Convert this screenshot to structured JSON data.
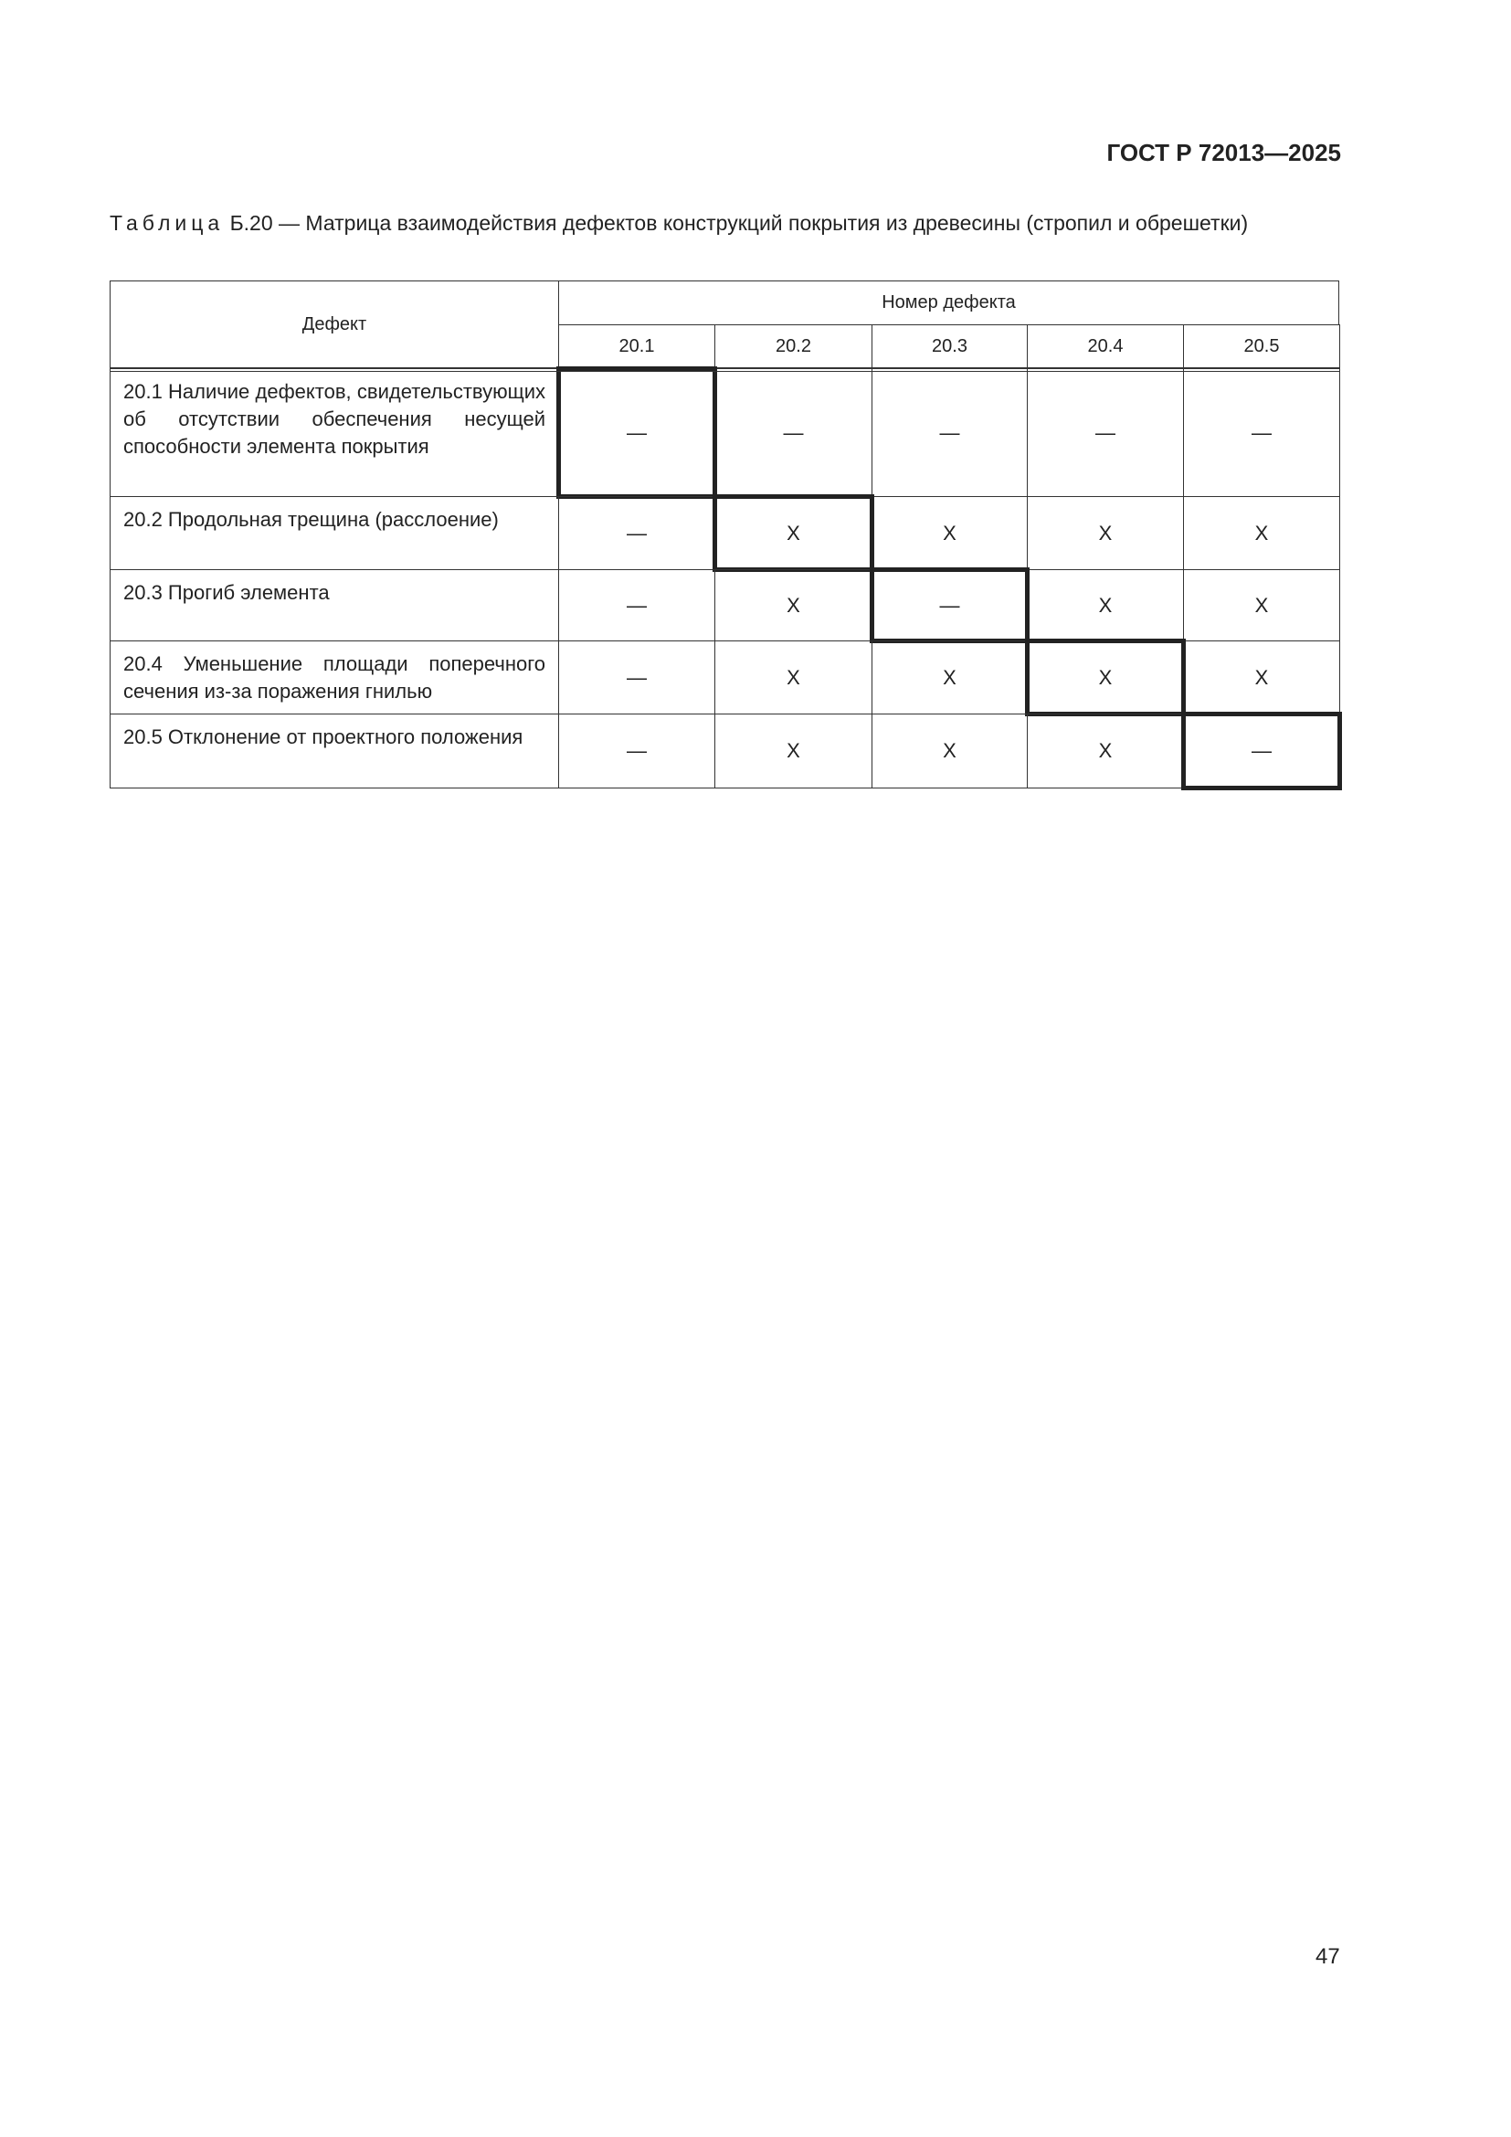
{
  "header": {
    "standard": "ГОСТ Р 72013—2025"
  },
  "caption": {
    "prefix": "Таблица",
    "text": " Б.20 — Матрица взаимодействия дефектов конструкций покрытия из древесины (стропил и обрешетки)"
  },
  "table": {
    "col_header": "Дефект",
    "group_header": "Номер дефекта",
    "columns": [
      "20.1",
      "20.2",
      "20.3",
      "20.4",
      "20.5"
    ],
    "rows": [
      {
        "label": "20.1 Наличие дефектов, свидетельствующих об отсутствии обеспечения несущей способности элемента покрытия",
        "cells": [
          "—",
          "—",
          "—",
          "—",
          "—"
        ]
      },
      {
        "label": "20.2 Продольная трещина (расслоение)",
        "cells": [
          "—",
          "X",
          "X",
          "X",
          "X"
        ]
      },
      {
        "label": "20.3 Прогиб элемента",
        "cells": [
          "—",
          "X",
          "—",
          "X",
          "X"
        ]
      },
      {
        "label": "20.4 Уменьшение площади поперечного сечения из-за поражения гнилью",
        "cells": [
          "—",
          "X",
          "X",
          "X",
          "X"
        ]
      },
      {
        "label": "20.5 Отклонение от проектного положения",
        "cells": [
          "—",
          "X",
          "X",
          "X",
          "—"
        ]
      }
    ]
  },
  "page_number": "47"
}
